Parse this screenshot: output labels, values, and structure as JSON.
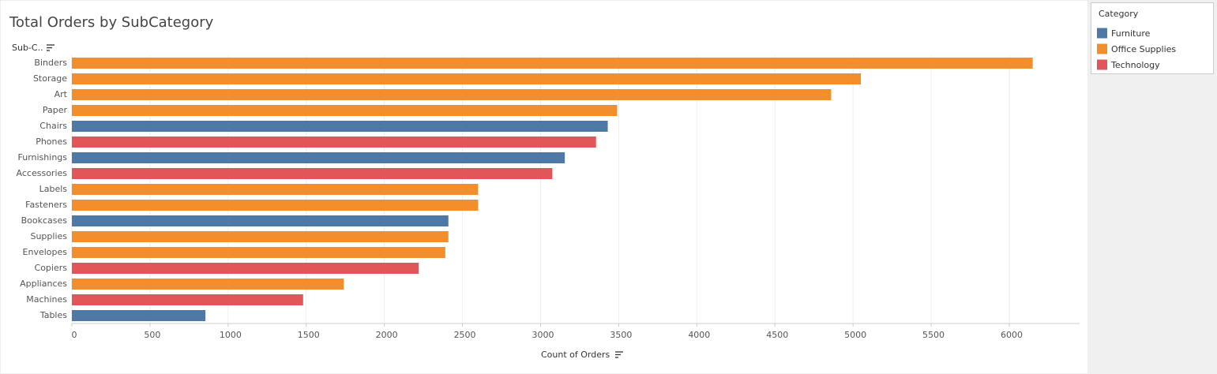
{
  "chart_data": {
    "type": "bar",
    "orientation": "horizontal",
    "title": "Total Orders by SubCategory",
    "y_axis_label": "Sub-C..",
    "x_axis_label": "Count of Orders",
    "categories": [
      "Binders",
      "Storage",
      "Art",
      "Paper",
      "Chairs",
      "Phones",
      "Furnishings",
      "Accessories",
      "Labels",
      "Fasteners",
      "Bookcases",
      "Supplies",
      "Envelopes",
      "Copiers",
      "Appliances",
      "Machines",
      "Tables"
    ],
    "values": [
      6150,
      5050,
      4860,
      3490,
      3430,
      3355,
      3155,
      3075,
      2600,
      2600,
      2410,
      2410,
      2390,
      2220,
      1740,
      1480,
      855
    ],
    "bar_categories": [
      "Office Supplies",
      "Office Supplies",
      "Office Supplies",
      "Office Supplies",
      "Furniture",
      "Technology",
      "Furniture",
      "Technology",
      "Office Supplies",
      "Office Supplies",
      "Furniture",
      "Office Supplies",
      "Office Supplies",
      "Technology",
      "Office Supplies",
      "Technology",
      "Furniture"
    ],
    "legend": {
      "title": "Category",
      "items": [
        {
          "name": "Furniture",
          "color": "#4e79a7"
        },
        {
          "name": "Office Supplies",
          "color": "#f28e2b"
        },
        {
          "name": "Technology",
          "color": "#e15759"
        }
      ]
    },
    "xlim": [
      0,
      6450
    ],
    "xticks": [
      0,
      500,
      1000,
      1500,
      2000,
      2500,
      3000,
      3500,
      4000,
      4500,
      5000,
      5500,
      6000
    ],
    "grid": true
  }
}
